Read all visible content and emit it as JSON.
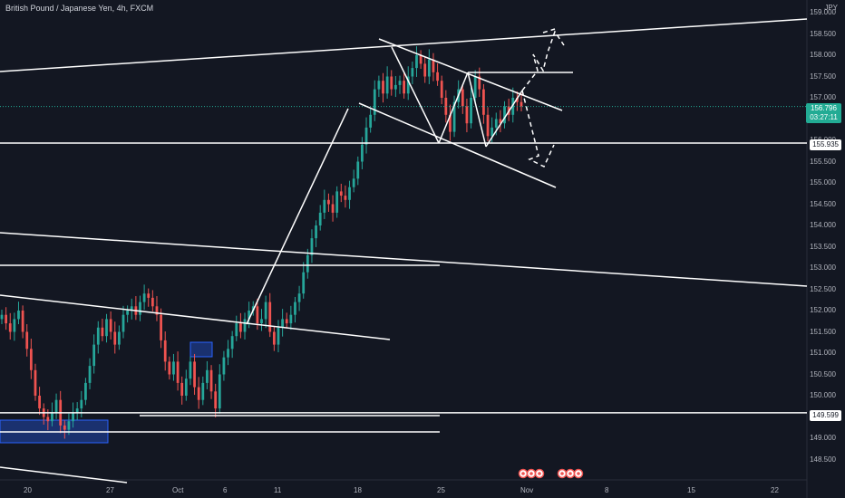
{
  "header": {
    "symbol_title": "British Pound / Japanese Yen, 4h, FXCM",
    "currency": "JPY"
  },
  "price_axis": {
    "ticks": [
      "159.000",
      "158.500",
      "158.000",
      "157.500",
      "157.000",
      "156.500",
      "156.000",
      "155.500",
      "155.000",
      "154.500",
      "154.000",
      "153.500",
      "153.000",
      "152.500",
      "152.000",
      "151.500",
      "151.000",
      "150.500",
      "150.000",
      "149.500",
      "149.000",
      "148.500"
    ],
    "current_price": "156.796",
    "countdown": "03:27:11",
    "level_labels": [
      "155.935",
      "149.599"
    ]
  },
  "time_axis": {
    "labels": [
      "20",
      "27",
      "Oct",
      "6",
      "11",
      "18",
      "25",
      "Nov",
      "8",
      "15",
      "22"
    ]
  },
  "colors": {
    "background": "#131722",
    "bull": "#26a69a",
    "bear": "#ef5350",
    "drawing": "#ffffff",
    "zone": "#2962ff",
    "current_price": "#22ab94"
  },
  "icons": [
    "flag-icon",
    "flag-icon",
    "flag-icon",
    "flag-icon",
    "flag-icon",
    "flag-icon",
    "flag-icon",
    "flag-icon",
    "flag-icon"
  ],
  "chart_data": {
    "type": "candlestick",
    "symbol": "GBPJPY",
    "timeframe": "4h",
    "ylim": [
      148.3,
      159.1
    ],
    "series_close": [
      151.9,
      151.7,
      151.5,
      151.8,
      152.0,
      151.5,
      151.1,
      150.6,
      150.0,
      149.7,
      149.5,
      149.4,
      149.6,
      149.9,
      149.3,
      149.2,
      149.4,
      149.6,
      149.7,
      149.9,
      150.3,
      150.7,
      151.2,
      151.6,
      151.4,
      151.8,
      151.5,
      151.2,
      151.5,
      151.9,
      152.0,
      152.1,
      151.9,
      152.2,
      152.4,
      152.3,
      152.1,
      151.9,
      151.3,
      150.8,
      150.5,
      150.8,
      150.3,
      150.0,
      150.4,
      150.8,
      150.2,
      149.9,
      150.3,
      150.6,
      150.1,
      149.7,
      150.5,
      150.9,
      151.1,
      151.4,
      151.7,
      151.5,
      151.8,
      152.0,
      152.1,
      151.7,
      151.8,
      152.2,
      151.5,
      151.2,
      151.6,
      151.8,
      151.7,
      151.9,
      152.2,
      152.4,
      152.9,
      153.3,
      153.7,
      154.0,
      154.3,
      154.6,
      154.5,
      154.3,
      154.8,
      154.7,
      154.6,
      154.9,
      155.1,
      155.5,
      155.9,
      156.3,
      156.6,
      157.2,
      157.4,
      157.1,
      157.5,
      157.2,
      157.3,
      157.4,
      157.1,
      157.5,
      157.7,
      158.0,
      157.8,
      157.5,
      157.9,
      157.6,
      157.4,
      157.0,
      156.6,
      156.2,
      156.9,
      157.2,
      156.8,
      156.4,
      157.0,
      157.5,
      157.2,
      156.6,
      156.1,
      156.3,
      156.5,
      156.4,
      156.8,
      156.6,
      157.0,
      156.9,
      156.8
    ],
    "levels": [
      155.935,
      149.599
    ]
  }
}
